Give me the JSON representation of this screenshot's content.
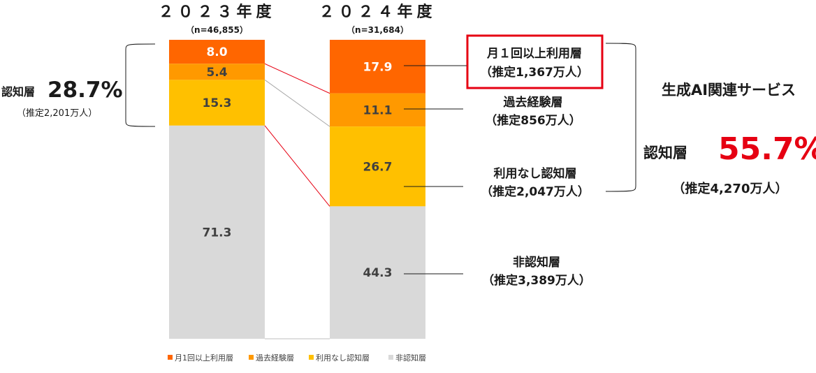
{
  "chart_data": {
    "type": "bar",
    "stacked": true,
    "categories": [
      "２０２３年度",
      "２０２４年度"
    ],
    "sample_sizes": [
      "（n=46,855）",
      "（n=31,684）"
    ],
    "series": [
      {
        "name": "月1回以上利用層",
        "values": [
          8.0,
          17.9
        ],
        "color": "#FF6600"
      },
      {
        "name": "過去経験層",
        "values": [
          5.4,
          11.1
        ],
        "color": "#FF9900"
      },
      {
        "name": "利用なし認知層",
        "values": [
          15.3,
          26.7
        ],
        "color": "#FFC000"
      },
      {
        "name": "非認知層",
        "values": [
          71.3,
          44.3
        ],
        "color": "#D9D9D9"
      }
    ],
    "ylim": [
      0,
      100
    ],
    "legend_position": "bottom"
  },
  "annotations": {
    "left_label": "認知層",
    "left_value": "28.7%",
    "left_estimate": "（推定2,201万人）",
    "right_labels": [
      {
        "line1": "月１回以上利用層",
        "line2": "（推定1,367万人）",
        "highlight": true
      },
      {
        "line1": "過去経験層",
        "line2": "（推定856万人）"
      },
      {
        "line1": "利用なし認知層",
        "line2": "（推定2,047万人）"
      },
      {
        "line1": "非認知層",
        "line2": "（推定3,389万人）"
      }
    ],
    "summary_title": "生成AI関連サービス",
    "summary_label": "認知層",
    "summary_value": "55.7%",
    "summary_estimate": "（推定4,270万人）"
  },
  "colors": {
    "highlight_border": "#E60012",
    "summary_value": "#E60012",
    "connector_red": "#E60012",
    "connector_gray": "#A6A6A6"
  }
}
